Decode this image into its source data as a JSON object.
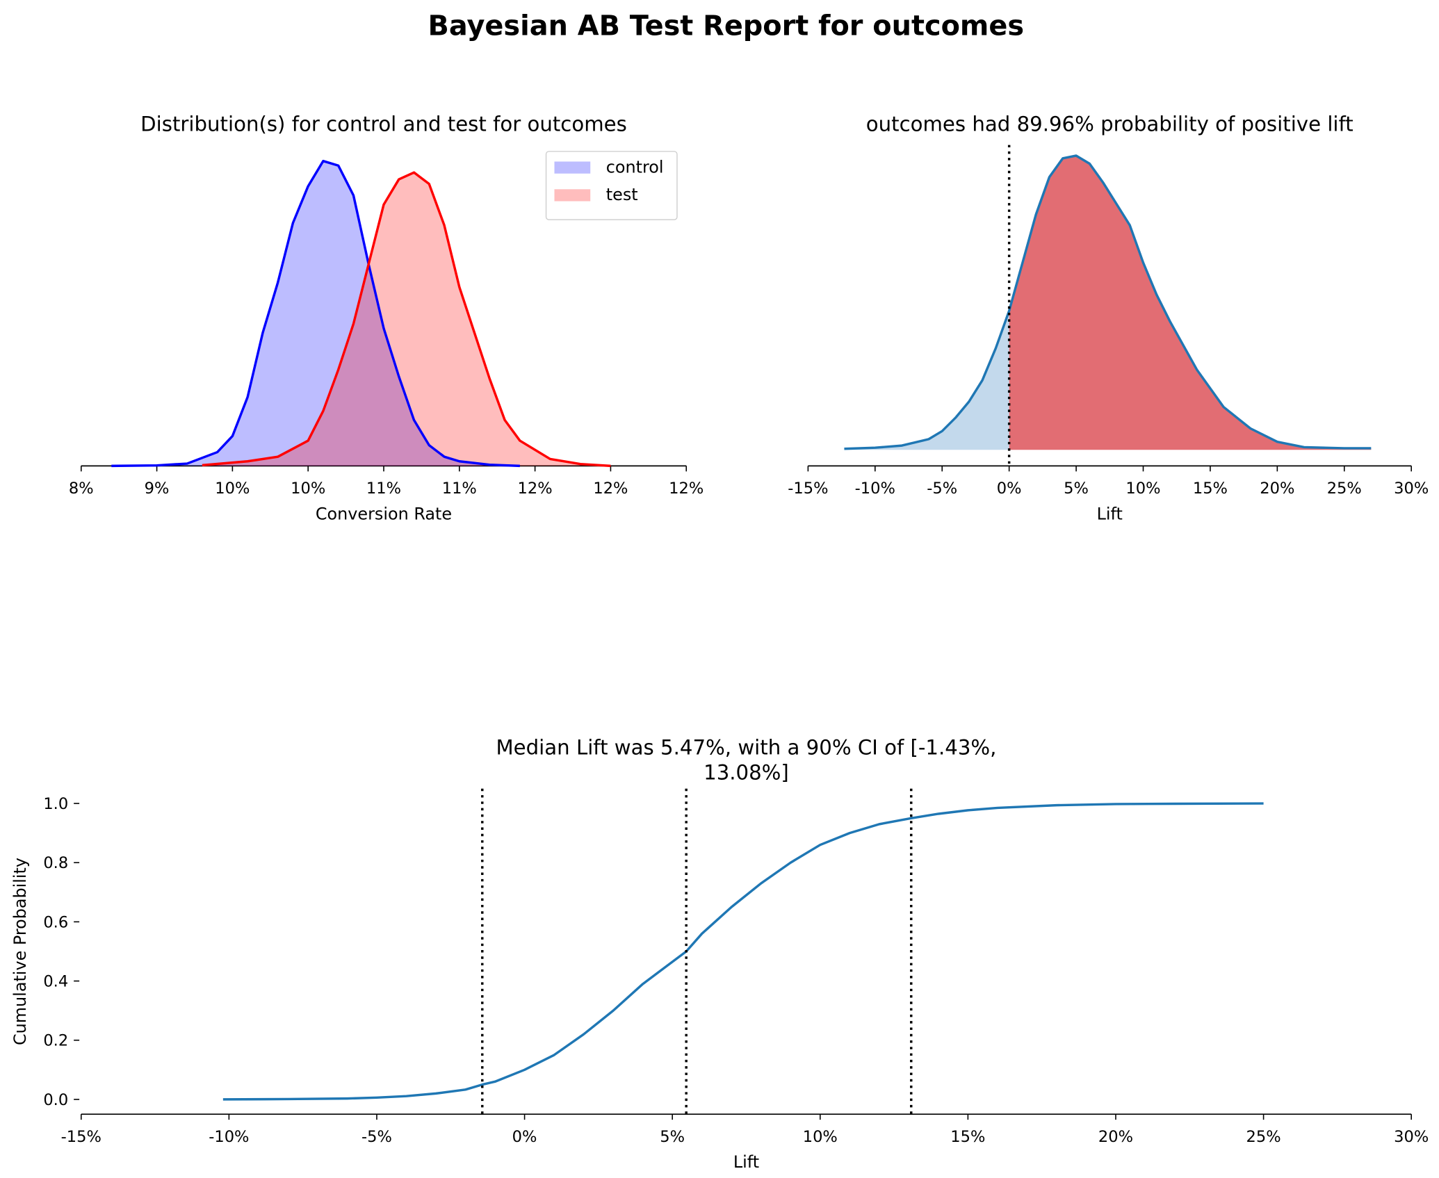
{
  "title": "Bayesian AB Test Report for outcomes",
  "chart_data": [
    {
      "type": "area",
      "title": "Distribution(s) for control and test for outcomes",
      "xlabel": "Conversion Rate",
      "xlim": [
        8.5,
        12.5
      ],
      "xticks": [
        {
          "value": 8.5,
          "label": "8%"
        },
        {
          "value": 9.0,
          "label": "9%"
        },
        {
          "value": 9.5,
          "label": "10%"
        },
        {
          "value": 10.0,
          "label": "10%"
        },
        {
          "value": 10.5,
          "label": "11%"
        },
        {
          "value": 11.0,
          "label": "11%"
        },
        {
          "value": 11.5,
          "label": "12%"
        },
        {
          "value": 12.0,
          "label": "12%"
        },
        {
          "value": 12.5,
          "label": "12%"
        }
      ],
      "ylim": [
        0,
        1.4
      ],
      "legend": "upper right",
      "fill_alpha": 0.26,
      "series": [
        {
          "name": "control",
          "color": "#0000ff",
          "x": [
            8.7,
            9.0,
            9.2,
            9.4,
            9.5,
            9.6,
            9.7,
            9.8,
            9.9,
            10.0,
            10.1,
            10.2,
            10.3,
            10.4,
            10.5,
            10.6,
            10.7,
            10.8,
            10.9,
            11.0,
            11.2,
            11.4
          ],
          "values": [
            0,
            0.002,
            0.01,
            0.06,
            0.13,
            0.3,
            0.58,
            0.8,
            1.06,
            1.22,
            1.33,
            1.31,
            1.18,
            0.88,
            0.6,
            0.39,
            0.2,
            0.09,
            0.04,
            0.02,
            0.005,
            0
          ]
        },
        {
          "name": "test",
          "color": "#ff0000",
          "x": [
            9.3,
            9.6,
            9.8,
            10.0,
            10.1,
            10.2,
            10.3,
            10.4,
            10.5,
            10.6,
            10.7,
            10.8,
            10.9,
            11.0,
            11.1,
            11.2,
            11.3,
            11.4,
            11.6,
            11.8,
            12.0
          ],
          "values": [
            0.003,
            0.02,
            0.04,
            0.11,
            0.24,
            0.42,
            0.62,
            0.88,
            1.14,
            1.25,
            1.28,
            1.23,
            1.05,
            0.78,
            0.58,
            0.38,
            0.2,
            0.11,
            0.03,
            0.008,
            0
          ]
        }
      ]
    },
    {
      "type": "area",
      "title": "outcomes had 89.96% probability of positive lift",
      "xlabel": "Lift",
      "xlim": [
        -15,
        30
      ],
      "xticks": [
        {
          "value": -15,
          "label": "-15%"
        },
        {
          "value": -10,
          "label": "-10%"
        },
        {
          "value": -5,
          "label": "-5%"
        },
        {
          "value": 0,
          "label": "0%"
        },
        {
          "value": 5,
          "label": "5%"
        },
        {
          "value": 10,
          "label": "10%"
        },
        {
          "value": 15,
          "label": "15%"
        },
        {
          "value": 20,
          "label": "20%"
        },
        {
          "value": 25,
          "label": "25%"
        },
        {
          "value": 30,
          "label": "30%"
        }
      ],
      "ylim": [
        -0.003,
        0.057
      ],
      "split_at": 0,
      "below_color": "#c3d9ec",
      "above_color": "#e26d73",
      "reference_lines": [
        0
      ],
      "series": [
        {
          "color": "#1f77b4",
          "x": [
            -12.3,
            -10,
            -8,
            -6,
            -5,
            -4,
            -3,
            -2,
            -1,
            0,
            1,
            2,
            3,
            4,
            5,
            6,
            7,
            8,
            9,
            10,
            11,
            12,
            14,
            16,
            18,
            20,
            22,
            25,
            27
          ],
          "values": [
            0.0002,
            0.0004,
            0.0008,
            0.002,
            0.0035,
            0.006,
            0.009,
            0.013,
            0.019,
            0.026,
            0.035,
            0.044,
            0.051,
            0.0545,
            0.055,
            0.0535,
            0.05,
            0.046,
            0.042,
            0.035,
            0.029,
            0.024,
            0.015,
            0.008,
            0.004,
            0.0015,
            0.0005,
            0.0003,
            0.0003
          ]
        }
      ]
    },
    {
      "type": "line",
      "title": "Median Lift was 5.47%, with a 90% CI of [-1.43%, 13.08%]",
      "xlabel": "Lift",
      "ylabel": "Cumulative Probability",
      "xlim": [
        -15,
        30
      ],
      "xticks": [
        {
          "value": -15,
          "label": "-15%"
        },
        {
          "value": -10,
          "label": "-10%"
        },
        {
          "value": -5,
          "label": "-5%"
        },
        {
          "value": 0,
          "label": "0%"
        },
        {
          "value": 5,
          "label": "5%"
        },
        {
          "value": 10,
          "label": "10%"
        },
        {
          "value": 15,
          "label": "15%"
        },
        {
          "value": 20,
          "label": "20%"
        },
        {
          "value": 25,
          "label": "25%"
        },
        {
          "value": 30,
          "label": "30%"
        }
      ],
      "ylim": [
        -0.05,
        1.05
      ],
      "yticks": [
        {
          "value": 0,
          "label": "0.0"
        },
        0.2,
        0.4,
        0.6,
        0.8,
        {
          "value": 1,
          "label": "1.0"
        }
      ],
      "reference_lines": [
        -1.43,
        5.47,
        13.08
      ],
      "series": [
        {
          "color": "#1f77b4",
          "x": [
            -10.2,
            -8,
            -6,
            -5,
            -4,
            -3,
            -2,
            -1.43,
            -1,
            0,
            1,
            2,
            3,
            4,
            5.47,
            6,
            7,
            8,
            9,
            10,
            11,
            12,
            13.08,
            14,
            15,
            16,
            18,
            20,
            22,
            25
          ],
          "values": [
            0,
            0.001,
            0.003,
            0.006,
            0.011,
            0.02,
            0.033,
            0.05,
            0.06,
            0.1,
            0.15,
            0.22,
            0.3,
            0.39,
            0.5,
            0.56,
            0.65,
            0.73,
            0.8,
            0.86,
            0.9,
            0.93,
            0.95,
            0.965,
            0.977,
            0.985,
            0.994,
            0.998,
            0.999,
            1.0
          ]
        }
      ]
    }
  ]
}
